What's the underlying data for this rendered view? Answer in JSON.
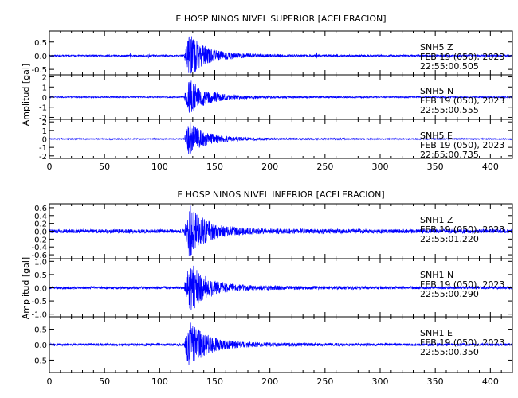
{
  "chart_data": [
    {
      "type": "line",
      "title": "E HOSP NINOS NIVEL SUPERIOR [ACELERACION]",
      "ylabel": "Amplitud [gal]",
      "xlabel": "",
      "xlim": [
        0,
        420
      ],
      "xticks": [
        0,
        50,
        100,
        150,
        200,
        250,
        300,
        350,
        400
      ],
      "line_color": "#0000ff",
      "grid": false,
      "series": [
        {
          "name": "SNH5 Z",
          "info": [
            "SNH5   Z",
            "FEB 19 (050), 2023",
            "22:55:00.505"
          ],
          "ylim": [
            -0.7,
            0.9
          ],
          "yticks": [
            "0.5",
            "0.0",
            "-0.5"
          ],
          "yticks_values": [
            0.5,
            0.0,
            -0.5
          ],
          "noise": 0.03,
          "peak": 0.8,
          "onset": 122,
          "spikes": [
            [
              74,
              0.12
            ],
            [
              90,
              0.08
            ],
            [
              165,
              0.07
            ],
            [
              242,
              0.14
            ]
          ]
        },
        {
          "name": "SNH5 N",
          "info": [
            "SNH5   N",
            "FEB 19 (050), 2023",
            "22:55:00.555"
          ],
          "ylim": [
            -2.2,
            2.2
          ],
          "yticks": [
            "2",
            "1",
            "0",
            "-1",
            "-2"
          ],
          "yticks_values": [
            2,
            1,
            0,
            -1,
            -2
          ],
          "noise": 0.06,
          "peak": 1.8,
          "onset": 122,
          "spikes": []
        },
        {
          "name": "SNH5 E",
          "info": [
            "SNH5   E",
            "FEB 19 (050), 2023",
            "22:55:00.735"
          ],
          "ylim": [
            -2.3,
            2.3
          ],
          "yticks": [
            "2",
            "1",
            "0",
            "-1",
            "-2"
          ],
          "yticks_values": [
            2,
            1,
            0,
            -1,
            -2
          ],
          "noise": 0.07,
          "peak": 2.1,
          "onset": 122,
          "spikes": []
        }
      ]
    },
    {
      "type": "line",
      "title": "E HOSP NINOS NIVEL INFERIOR [ACELERACION]",
      "ylabel": "Amplitud [gal]",
      "xlabel": "",
      "xlim": [
        0,
        420
      ],
      "xticks": [
        0,
        50,
        100,
        150,
        200,
        250,
        300,
        350,
        400
      ],
      "line_color": "#0000ff",
      "grid": false,
      "series": [
        {
          "name": "SNH1 Z",
          "info": [
            "SNH1   Z",
            "FEB 19 (050), 2023",
            "22:55:01.220"
          ],
          "ylim": [
            -0.7,
            0.7
          ],
          "yticks": [
            "0.6",
            "0.4",
            "0.2",
            "0.0",
            "-0.2",
            "-0.4",
            "-0.6"
          ],
          "yticks_values": [
            0.6,
            0.4,
            0.2,
            0.0,
            -0.2,
            -0.4,
            -0.6
          ],
          "noise": 0.05,
          "peak": 0.65,
          "onset": 122,
          "spikes": []
        },
        {
          "name": "SNH1 N",
          "info": [
            "SNH1   N",
            "FEB 19 (050), 2023",
            "22:55:00.290"
          ],
          "ylim": [
            -1.1,
            1.1
          ],
          "yticks": [
            "1.0",
            "0.5",
            "0.0",
            "-0.5",
            "-1.0"
          ],
          "yticks_values": [
            1.0,
            0.5,
            0.0,
            -0.5,
            -1.0
          ],
          "noise": 0.05,
          "peak": 1.0,
          "onset": 122,
          "spikes": []
        },
        {
          "name": "SNH1 E",
          "info": [
            "SNH1   E",
            "FEB 19 (050), 2023",
            "22:55:00.350"
          ],
          "ylim": [
            -0.9,
            0.9
          ],
          "yticks": [
            "0.5",
            "0.0",
            "-0.5"
          ],
          "yticks_values": [
            0.5,
            0.0,
            -0.5
          ],
          "noise": 0.04,
          "peak": 0.8,
          "onset": 122,
          "spikes": []
        }
      ]
    }
  ]
}
